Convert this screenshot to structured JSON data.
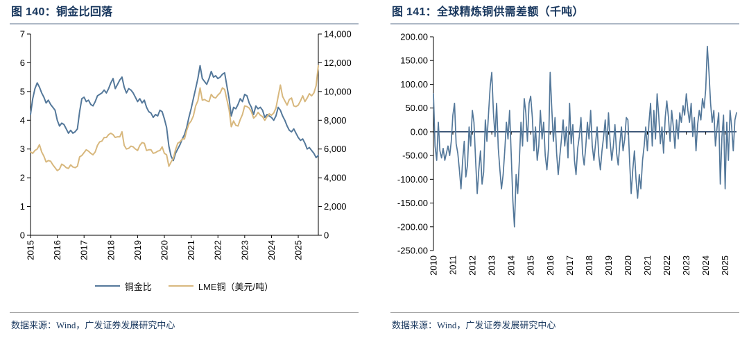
{
  "colors": {
    "title_navy": "#17365d",
    "axis_black": "#000000",
    "series_blue": "#54789A",
    "series_tan": "#D8B87E",
    "zero_line": "#17365d",
    "rule_gray": "#9a9a9a"
  },
  "chart_data": [
    {
      "type": "line",
      "title": "图 140：铜金比回落",
      "source": "数据来源：Wind，广发证券发展研究中心",
      "x_start": 2015,
      "x_unit": "month",
      "x_ticks": [
        "2015",
        "2016",
        "2017",
        "2018",
        "2019",
        "2020",
        "2021",
        "2022",
        "2023",
        "2024",
        "2025"
      ],
      "x_label_rotation": 90,
      "grid": false,
      "legend_position": "bottom",
      "axes": {
        "left": {
          "min": 0,
          "max": 7,
          "tick_values": [
            0,
            1,
            2,
            3,
            4,
            5,
            6,
            7
          ],
          "tick_labels": [
            "0",
            "1",
            "2",
            "3",
            "4",
            "5",
            "6",
            "7"
          ]
        },
        "right": {
          "min": 0,
          "max": 14000,
          "tick_values": [
            0,
            2000,
            4000,
            6000,
            8000,
            10000,
            12000,
            14000
          ],
          "tick_labels": [
            "0",
            "2,000",
            "4,000",
            "6,000",
            "8,000",
            "10,000",
            "12,000",
            "14,000"
          ]
        }
      },
      "series": [
        {
          "name": "铜金比",
          "axis": "left",
          "color": "#54789A",
          "values": [
            4.2,
            4.75,
            5.1,
            5.3,
            5.15,
            4.95,
            4.8,
            4.6,
            4.7,
            4.55,
            4.45,
            4.35,
            4.0,
            3.8,
            3.9,
            3.85,
            3.7,
            3.55,
            3.65,
            3.55,
            3.6,
            3.7,
            4.3,
            4.75,
            4.8,
            4.65,
            4.7,
            4.55,
            4.5,
            4.65,
            4.85,
            4.9,
            4.95,
            5.05,
            4.95,
            5.1,
            5.3,
            5.45,
            5.1,
            5.25,
            5.4,
            5.5,
            5.15,
            4.95,
            5.1,
            5.05,
            4.95,
            4.8,
            4.65,
            4.75,
            4.6,
            4.7,
            4.45,
            4.3,
            4.25,
            4.1,
            4.2,
            4.15,
            4.35,
            4.3,
            4.05,
            3.75,
            3.1,
            2.75,
            2.6,
            2.85,
            3.0,
            3.15,
            3.35,
            3.5,
            3.75,
            4.1,
            4.4,
            4.75,
            5.1,
            5.45,
            5.9,
            5.45,
            5.35,
            5.25,
            5.45,
            5.7,
            5.5,
            5.55,
            5.45,
            5.5,
            5.6,
            5.65,
            5.2,
            4.75,
            4.15,
            4.45,
            4.4,
            4.55,
            4.75,
            4.65,
            4.9,
            4.85,
            4.6,
            4.45,
            4.2,
            4.5,
            4.4,
            4.45,
            4.35,
            4.1,
            4.2,
            4.15,
            4.1,
            4.0,
            4.15,
            4.45,
            4.35,
            4.15,
            4.0,
            3.8,
            3.65,
            3.6,
            3.7,
            3.55,
            3.4,
            3.3,
            3.35,
            3.2,
            3.0,
            3.05,
            2.95,
            2.85,
            2.7,
            2.78
          ]
        },
        {
          "name": "LME铜（美元/吨）",
          "axis": "right",
          "color": "#D8B87E",
          "values": [
            5800,
            5700,
            5900,
            6000,
            6300,
            5800,
            5500,
            5100,
            5200,
            5150,
            4900,
            4700,
            4500,
            4600,
            4950,
            4850,
            4700,
            4650,
            4900,
            4750,
            4700,
            4800,
            5450,
            5550,
            5750,
            5950,
            5850,
            5700,
            5600,
            5800,
            6250,
            6500,
            6550,
            6800,
            6800,
            7000,
            7100,
            7000,
            6800,
            6850,
            6850,
            7200,
            6250,
            6000,
            6050,
            6200,
            6150,
            6000,
            5900,
            6250,
            6450,
            6400,
            5900,
            5950,
            5950,
            5700,
            5750,
            5850,
            5900,
            6150,
            5700,
            5600,
            4800,
            5100,
            5350,
            5950,
            6400,
            6500,
            6700,
            6700,
            7300,
            7750,
            7950,
            8300,
            9000,
            9350,
            10250,
            9400,
            9450,
            9350,
            9300,
            9800,
            9600,
            9550,
            9750,
            9900,
            10250,
            10150,
            9450,
            8750,
            7550,
            7950,
            7650,
            7600,
            8050,
            8400,
            9000,
            8950,
            8850,
            8600,
            8150,
            8300,
            8550,
            8350,
            8250,
            8000,
            8250,
            8450,
            8350,
            8500,
            8850,
            9650,
            10450,
            9650,
            9350,
            9050,
            9450,
            9550,
            9000,
            8950,
            9050,
            9350,
            9700,
            9300,
            9550,
            9850,
            9700,
            9900,
            10400,
            11800
          ]
        }
      ]
    },
    {
      "type": "line",
      "title": "图 141：全球精炼铜供需差额（千吨）",
      "source": "数据来源：Wind，广发证券发展研究中心",
      "x_start": 2010,
      "x_unit": "month",
      "x_ticks": [
        "2010",
        "2011",
        "2012",
        "2013",
        "2014",
        "2015",
        "2016",
        "2017",
        "2018",
        "2019",
        "2020",
        "2021",
        "2022",
        "2023",
        "2024",
        "2025"
      ],
      "x_label_rotation": 90,
      "grid": false,
      "zero_line": true,
      "axes": {
        "left": {
          "min": -250,
          "max": 200,
          "tick_values": [
            200,
            150,
            100,
            50,
            0,
            -50,
            -100,
            -150,
            -200,
            -250
          ],
          "tick_labels": [
            "200.00",
            "150.00",
            "100.00",
            "50.00",
            "0.00",
            "-50.00",
            "-100.00",
            "-150.00",
            "-200.00",
            "-250.00"
          ]
        }
      },
      "series": [
        {
          "name": "全球精炼铜供需差额",
          "axis": "left",
          "color": "#54789A",
          "values": [
            80,
            -30,
            -60,
            20,
            -40,
            -55,
            -35,
            -60,
            -45,
            -30,
            -50,
            -20,
            35,
            60,
            -25,
            -45,
            -80,
            -120,
            -60,
            -20,
            -95,
            -70,
            10,
            -30,
            45,
            20,
            -60,
            -130,
            -80,
            -40,
            -110,
            -85,
            25,
            -20,
            40,
            95,
            125,
            40,
            -10,
            60,
            -35,
            -80,
            -120,
            -90,
            -40,
            20,
            -15,
            45,
            -50,
            -145,
            -200,
            -90,
            -130,
            -60,
            20,
            -30,
            70,
            40,
            -20,
            60,
            75,
            30,
            -40,
            10,
            -60,
            -30,
            45,
            -15,
            20,
            -50,
            -80,
            -35,
            125,
            50,
            -20,
            30,
            -45,
            -90,
            -50,
            -15,
            25,
            -30,
            10,
            -55,
            60,
            -25,
            15,
            -60,
            -90,
            -35,
            -10,
            30,
            -45,
            -70,
            -30,
            20,
            -15,
            45,
            -30,
            -60,
            -25,
            10,
            -50,
            -80,
            -40,
            -10,
            25,
            -35,
            40,
            -20,
            -60,
            -30,
            15,
            -45,
            -70,
            -25,
            10,
            -40,
            -15,
            30,
            25,
            -60,
            -130,
            -80,
            -40,
            -100,
            -140,
            -90,
            -120,
            -60,
            -30,
            10,
            -40,
            20,
            60,
            -30,
            45,
            -15,
            80,
            35,
            -25,
            10,
            -45,
            30,
            65,
            30,
            -20,
            45,
            10,
            -35,
            25,
            -15,
            40,
            20,
            55,
            35,
            80,
            45,
            20,
            60,
            -10,
            30,
            -40,
            15,
            45,
            25,
            70,
            50,
            90,
            180,
            125,
            60,
            20,
            45,
            -30,
            10,
            40,
            -110,
            -10,
            35,
            -120,
            20,
            -60,
            45,
            10,
            -40,
            25,
            40
          ]
        }
      ]
    }
  ]
}
